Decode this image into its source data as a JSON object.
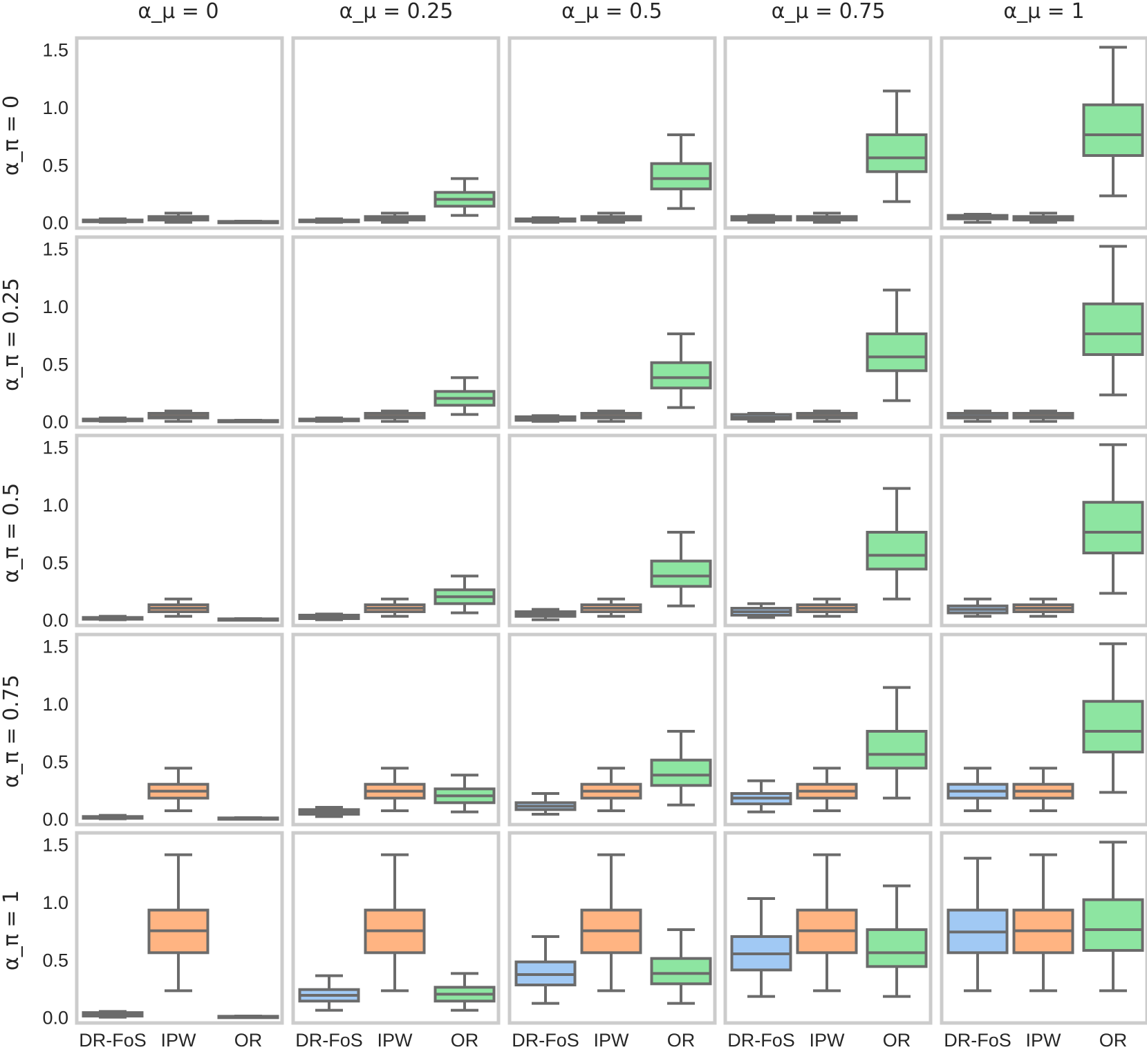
{
  "chart_data": {
    "type": "box",
    "title": "",
    "methods": [
      "DR-FoS",
      "IPW",
      "OR"
    ],
    "column_labels": [
      "α_μ = 0",
      "α_μ = 0.25",
      "α_μ = 0.5",
      "α_μ = 0.75",
      "α_μ = 1"
    ],
    "row_labels": [
      "α_π = 0",
      "α_π = 0.25",
      "α_π = 0.5",
      "α_π = 0.75",
      "α_π = 1"
    ],
    "ylim": [
      -0.05,
      1.6
    ],
    "yticks": [
      "0.0",
      "0.5",
      "1.0",
      "1.5"
    ],
    "colors": {
      "DR-FoS": "#a1c9f4",
      "IPW": "#ffb482",
      "OR": "#8de5a1",
      "outline": "#6b6b6b",
      "frame": "#cccccc"
    },
    "panels": [
      [
        [
          [
            0,
            0.005,
            0.01,
            0.02,
            0.03
          ],
          [
            0,
            0.02,
            0.035,
            0.05,
            0.08
          ],
          [
            0,
            0.002,
            0.005,
            0.008,
            0.01
          ]
        ],
        [
          [
            0,
            0.005,
            0.01,
            0.02,
            0.03
          ],
          [
            0,
            0.02,
            0.035,
            0.05,
            0.08
          ],
          [
            0.06,
            0.14,
            0.2,
            0.26,
            0.38
          ]
        ],
        [
          [
            0,
            0.01,
            0.02,
            0.03,
            0.04
          ],
          [
            0,
            0.02,
            0.035,
            0.05,
            0.08
          ],
          [
            0.12,
            0.29,
            0.38,
            0.51,
            0.76
          ]
        ],
        [
          [
            0,
            0.02,
            0.03,
            0.05,
            0.06
          ],
          [
            0,
            0.02,
            0.035,
            0.05,
            0.08
          ],
          [
            0.18,
            0.44,
            0.56,
            0.76,
            1.14
          ]
        ],
        [
          [
            0,
            0.03,
            0.04,
            0.06,
            0.07
          ],
          [
            0,
            0.02,
            0.035,
            0.05,
            0.08
          ],
          [
            0.23,
            0.58,
            0.76,
            1.02,
            1.52
          ]
        ]
      ],
      [
        [
          [
            0,
            0.005,
            0.01,
            0.02,
            0.03
          ],
          [
            0,
            0.03,
            0.045,
            0.07,
            0.09
          ],
          [
            0,
            0.002,
            0.005,
            0.008,
            0.01
          ]
        ],
        [
          [
            0,
            0.005,
            0.01,
            0.02,
            0.03
          ],
          [
            0,
            0.03,
            0.045,
            0.07,
            0.09
          ],
          [
            0.06,
            0.14,
            0.2,
            0.26,
            0.38
          ]
        ],
        [
          [
            0,
            0.01,
            0.02,
            0.04,
            0.05
          ],
          [
            0,
            0.03,
            0.045,
            0.07,
            0.09
          ],
          [
            0.12,
            0.29,
            0.38,
            0.51,
            0.76
          ]
        ],
        [
          [
            0,
            0.02,
            0.035,
            0.06,
            0.07
          ],
          [
            0,
            0.03,
            0.045,
            0.07,
            0.09
          ],
          [
            0.18,
            0.44,
            0.56,
            0.76,
            1.14
          ]
        ],
        [
          [
            0,
            0.03,
            0.045,
            0.07,
            0.09
          ],
          [
            0,
            0.03,
            0.045,
            0.07,
            0.09
          ],
          [
            0.23,
            0.58,
            0.76,
            1.02,
            1.52
          ]
        ]
      ],
      [
        [
          [
            0,
            0.005,
            0.01,
            0.02,
            0.03
          ],
          [
            0.03,
            0.07,
            0.1,
            0.13,
            0.18
          ],
          [
            0,
            0.002,
            0.005,
            0.008,
            0.01
          ]
        ],
        [
          [
            0,
            0.01,
            0.02,
            0.04,
            0.05
          ],
          [
            0.03,
            0.07,
            0.1,
            0.13,
            0.18
          ],
          [
            0.06,
            0.14,
            0.2,
            0.26,
            0.38
          ]
        ],
        [
          [
            0,
            0.03,
            0.05,
            0.07,
            0.09
          ],
          [
            0.03,
            0.07,
            0.1,
            0.13,
            0.18
          ],
          [
            0.12,
            0.29,
            0.38,
            0.51,
            0.76
          ]
        ],
        [
          [
            0.02,
            0.04,
            0.07,
            0.1,
            0.14
          ],
          [
            0.03,
            0.07,
            0.1,
            0.13,
            0.18
          ],
          [
            0.18,
            0.44,
            0.56,
            0.76,
            1.14
          ]
        ],
        [
          [
            0.03,
            0.06,
            0.09,
            0.12,
            0.18
          ],
          [
            0.03,
            0.07,
            0.1,
            0.13,
            0.18
          ],
          [
            0.23,
            0.58,
            0.76,
            1.02,
            1.52
          ]
        ]
      ],
      [
        [
          [
            0,
            0.005,
            0.01,
            0.02,
            0.03
          ],
          [
            0.07,
            0.18,
            0.24,
            0.3,
            0.44
          ],
          [
            0,
            0.002,
            0.005,
            0.008,
            0.01
          ]
        ],
        [
          [
            0.02,
            0.04,
            0.06,
            0.08,
            0.1
          ],
          [
            0.07,
            0.18,
            0.24,
            0.3,
            0.44
          ],
          [
            0.06,
            0.14,
            0.2,
            0.26,
            0.38
          ]
        ],
        [
          [
            0.04,
            0.08,
            0.11,
            0.14,
            0.22
          ],
          [
            0.07,
            0.18,
            0.24,
            0.3,
            0.44
          ],
          [
            0.12,
            0.29,
            0.38,
            0.51,
            0.76
          ]
        ],
        [
          [
            0.06,
            0.13,
            0.18,
            0.22,
            0.33
          ],
          [
            0.07,
            0.18,
            0.24,
            0.3,
            0.44
          ],
          [
            0.18,
            0.44,
            0.56,
            0.76,
            1.14
          ]
        ],
        [
          [
            0.07,
            0.18,
            0.24,
            0.3,
            0.44
          ],
          [
            0.07,
            0.18,
            0.24,
            0.3,
            0.44
          ],
          [
            0.23,
            0.58,
            0.76,
            1.02,
            1.52
          ]
        ]
      ],
      [
        [
          [
            0,
            0.01,
            0.02,
            0.04,
            0.05
          ],
          [
            0.23,
            0.56,
            0.75,
            0.93,
            1.41
          ],
          [
            0,
            0.002,
            0.005,
            0.008,
            0.01
          ]
        ],
        [
          [
            0.06,
            0.14,
            0.19,
            0.24,
            0.36
          ],
          [
            0.23,
            0.56,
            0.75,
            0.93,
            1.41
          ],
          [
            0.06,
            0.14,
            0.2,
            0.26,
            0.38
          ]
        ],
        [
          [
            0.12,
            0.28,
            0.37,
            0.48,
            0.7
          ],
          [
            0.23,
            0.56,
            0.75,
            0.93,
            1.41
          ],
          [
            0.12,
            0.29,
            0.38,
            0.51,
            0.76
          ]
        ],
        [
          [
            0.18,
            0.41,
            0.55,
            0.7,
            1.03
          ],
          [
            0.23,
            0.56,
            0.75,
            0.93,
            1.41
          ],
          [
            0.18,
            0.44,
            0.56,
            0.76,
            1.14
          ]
        ],
        [
          [
            0.23,
            0.56,
            0.74,
            0.93,
            1.38
          ],
          [
            0.23,
            0.56,
            0.75,
            0.93,
            1.41
          ],
          [
            0.23,
            0.58,
            0.76,
            1.02,
            1.52
          ]
        ]
      ]
    ]
  }
}
